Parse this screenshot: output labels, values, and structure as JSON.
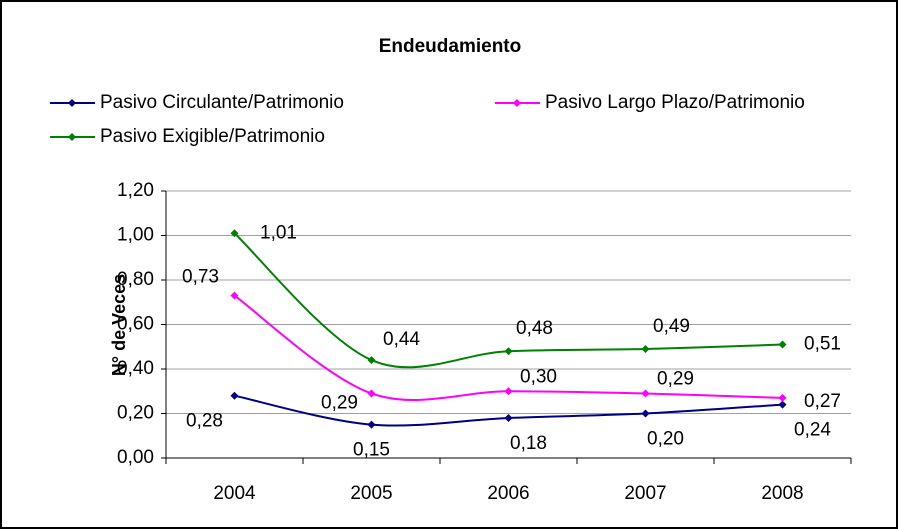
{
  "chart_data": {
    "type": "line",
    "title": "Endeudamiento",
    "y_label": "N° de Veces",
    "categories": [
      "2004",
      "2005",
      "2006",
      "2007",
      "2008"
    ],
    "series": [
      {
        "name": "Pasivo Circulante/Patrimonio",
        "color": "#000080",
        "label_color": "#333399",
        "values": [
          0.28,
          0.15,
          0.18,
          0.2,
          0.24
        ],
        "value_labels": [
          "0,28",
          "0,15",
          "0,18",
          "0,20",
          "0,24"
        ]
      },
      {
        "name": "Pasivo Largo Plazo/Patrimonio",
        "color": "#ff00ff",
        "label_color": "#ff00ff",
        "values": [
          0.73,
          0.29,
          0.3,
          0.29,
          0.27
        ],
        "value_labels": [
          "0,73",
          "0,29",
          "0,30",
          "0,29",
          "0,27"
        ]
      },
      {
        "name": "Pasivo Exigible/Patrimonio",
        "color": "#008000",
        "label_color": "#008000",
        "values": [
          1.01,
          0.44,
          0.48,
          0.49,
          0.51
        ],
        "value_labels": [
          "1,01",
          "0,44",
          "0,48",
          "0,49",
          "0,51"
        ]
      }
    ],
    "ylim": [
      0,
      1.2
    ],
    "yticks": [
      {
        "value": 0,
        "label": "0,00"
      },
      {
        "value": 0.2,
        "label": "0,20"
      },
      {
        "value": 0.4,
        "label": "0,40"
      },
      {
        "value": 0.6,
        "label": "0,60"
      },
      {
        "value": 0.8,
        "label": "0,80"
      },
      {
        "value": 1.0,
        "label": "1,00"
      },
      {
        "value": 1.2,
        "label": "1,20"
      }
    ],
    "grid": true,
    "legend": "top"
  }
}
